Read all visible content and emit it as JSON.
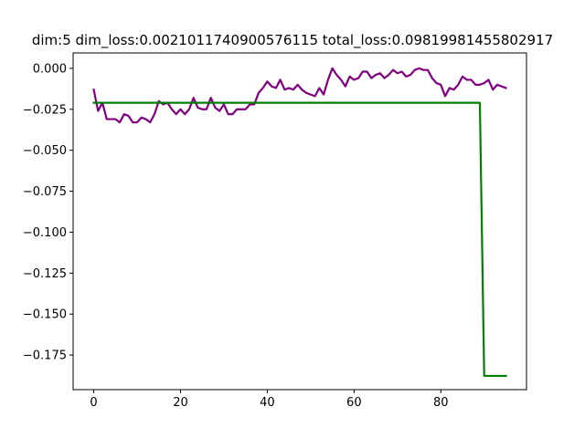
{
  "chart_data": {
    "type": "line",
    "title": "dim:5 dim_loss:0.0021011740900576115 total_loss:0.09819981455802917",
    "xlabel": "",
    "ylabel": "",
    "xlim": [
      -4.75,
      99.75
    ],
    "ylim": [
      -0.1961,
      0.0094
    ],
    "xticks": [
      0,
      20,
      40,
      60,
      80
    ],
    "xtick_labels": [
      "0",
      "20",
      "40",
      "60",
      "80"
    ],
    "yticks": [
      0.0,
      -0.025,
      -0.05,
      -0.075,
      -0.1,
      -0.125,
      -0.15,
      -0.175
    ],
    "ytick_labels": [
      "0.000",
      "−0.025",
      "−0.050",
      "−0.075",
      "−0.100",
      "−0.125",
      "−0.150",
      "−0.175"
    ],
    "grid": false,
    "legend": "none",
    "series": [
      {
        "color": "#800080",
        "x": [
          0,
          1,
          2,
          3,
          4,
          5,
          6,
          7,
          8,
          9,
          10,
          11,
          12,
          13,
          14,
          15,
          16,
          17,
          18,
          19,
          20,
          21,
          22,
          23,
          24,
          25,
          26,
          27,
          28,
          29,
          30,
          31,
          32,
          33,
          34,
          35,
          36,
          37,
          38,
          39,
          40,
          41,
          42,
          43,
          44,
          45,
          46,
          47,
          48,
          49,
          50,
          51,
          52,
          53,
          54,
          55,
          56,
          57,
          58,
          59,
          60,
          61,
          62,
          63,
          64,
          65,
          66,
          67,
          68,
          69,
          70,
          71,
          72,
          73,
          74,
          75,
          76,
          77,
          78,
          79,
          80,
          81,
          82,
          83,
          84,
          85,
          86,
          87,
          88,
          89,
          90,
          91,
          92,
          93,
          94,
          95
        ],
        "y": [
          -0.013,
          -0.026,
          -0.021,
          -0.031,
          -0.031,
          -0.031,
          -0.033,
          -0.028,
          -0.029,
          -0.033,
          -0.033,
          -0.03,
          -0.031,
          -0.033,
          -0.028,
          -0.02,
          -0.022,
          -0.021,
          -0.025,
          -0.028,
          -0.025,
          -0.028,
          -0.025,
          -0.018,
          -0.024,
          -0.025,
          -0.025,
          -0.018,
          -0.024,
          -0.026,
          -0.022,
          -0.028,
          -0.028,
          -0.025,
          -0.025,
          -0.025,
          -0.022,
          -0.022,
          -0.015,
          -0.012,
          -0.008,
          -0.011,
          -0.012,
          -0.007,
          -0.013,
          -0.012,
          -0.013,
          -0.01,
          -0.013,
          -0.015,
          -0.016,
          -0.017,
          -0.012,
          -0.016,
          -0.007,
          0.0,
          -0.004,
          -0.007,
          -0.011,
          -0.005,
          -0.007,
          -0.006,
          -0.002,
          -0.002,
          -0.006,
          -0.004,
          -0.003,
          -0.006,
          -0.004,
          -0.001,
          -0.003,
          -0.002,
          -0.005,
          -0.004,
          -0.001,
          0.0,
          -0.001,
          -0.001,
          -0.006,
          -0.009,
          -0.01,
          -0.017,
          -0.012,
          -0.013,
          -0.01,
          -0.005,
          -0.007,
          -0.007,
          -0.01,
          -0.01,
          -0.009,
          -0.007,
          -0.013,
          -0.01,
          -0.011,
          -0.012
        ]
      },
      {
        "color": "#008000",
        "x": [
          0,
          89,
          90,
          95
        ],
        "y": [
          -0.021,
          -0.021,
          -0.1877,
          -0.1877
        ]
      }
    ]
  }
}
